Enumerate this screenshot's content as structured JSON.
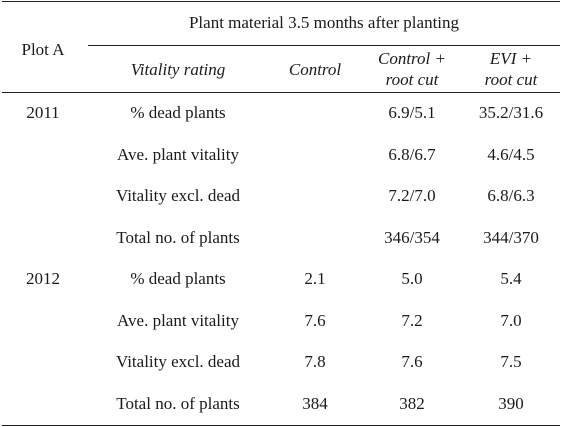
{
  "table": {
    "stub_header": "Plot A",
    "spanner": "Plant material 3.5 months after planting",
    "columns": {
      "rating": "Vitality rating",
      "control": "Control",
      "control_root_l1": "Control +",
      "control_root_l2": "root cut",
      "evi_l1": "EVI +",
      "evi_l2": "root cut"
    },
    "groups": [
      {
        "year": "2011",
        "rows": [
          {
            "label": "% dead plants",
            "control": "",
            "control_root": "6.9/5.1",
            "evi_root": "35.2/31.6"
          },
          {
            "label": "Ave. plant vitality",
            "control": "",
            "control_root": "6.8/6.7",
            "evi_root": "4.6/4.5"
          },
          {
            "label": "Vitality excl. dead",
            "control": "",
            "control_root": "7.2/7.0",
            "evi_root": "6.8/6.3"
          },
          {
            "label": "Total no. of plants",
            "control": "",
            "control_root": "346/354",
            "evi_root": "344/370"
          }
        ]
      },
      {
        "year": "2012",
        "rows": [
          {
            "label": "% dead plants",
            "control": "2.1",
            "control_root": "5.0",
            "evi_root": "5.4"
          },
          {
            "label": "Ave. plant vitality",
            "control": "7.6",
            "control_root": "7.2",
            "evi_root": "7.0"
          },
          {
            "label": "Vitality excl. dead",
            "control": "7.8",
            "control_root": "7.6",
            "evi_root": "7.5"
          },
          {
            "label": "Total no. of plants",
            "control": "384",
            "control_root": "382",
            "evi_root": "390"
          }
        ]
      }
    ]
  }
}
